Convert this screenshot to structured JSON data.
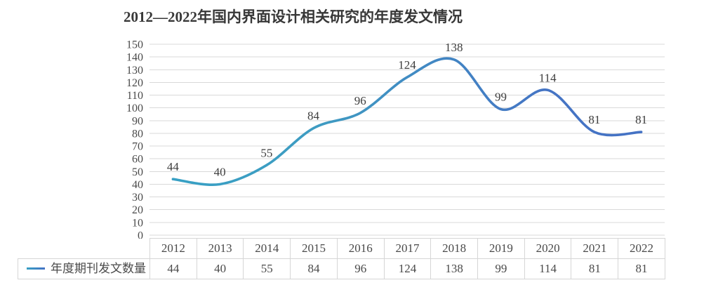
{
  "chart_data": {
    "type": "line",
    "title": "2012—2022年国内界面设计相关研究的年度发文情况",
    "categories": [
      "2012",
      "2013",
      "2014",
      "2015",
      "2016",
      "2017",
      "2018",
      "2019",
      "2020",
      "2021",
      "2022"
    ],
    "series": [
      {
        "name": "年度期刊发文数量",
        "values": [
          44,
          40,
          55,
          84,
          96,
          124,
          138,
          99,
          114,
          81,
          81
        ]
      }
    ],
    "data_labels": [
      44,
      40,
      55,
      84,
      96,
      124,
      138,
      99,
      114,
      81,
      81
    ],
    "xlabel": "",
    "ylabel": "",
    "ylim": [
      0,
      150
    ],
    "ytick_step": 10,
    "yticks": [
      0,
      10,
      20,
      30,
      40,
      50,
      60,
      70,
      80,
      90,
      100,
      110,
      120,
      130,
      140,
      150
    ],
    "grid": true,
    "smooth": true,
    "legend_position": "data-table-left",
    "colors": {
      "line_gradient": [
        {
          "offset": 0,
          "color": "#38A0C4"
        },
        {
          "offset": 0.3,
          "color": "#3E9CC2"
        },
        {
          "offset": 0.8,
          "color": "#4574C4"
        },
        {
          "offset": 1,
          "color": "#4472C4"
        }
      ],
      "gridline": "#D9D9D9",
      "tick_label": "#4A4A4A",
      "data_label": "#3D3D3D",
      "table_border": "#D6D6D6",
      "title": "#383838"
    }
  }
}
